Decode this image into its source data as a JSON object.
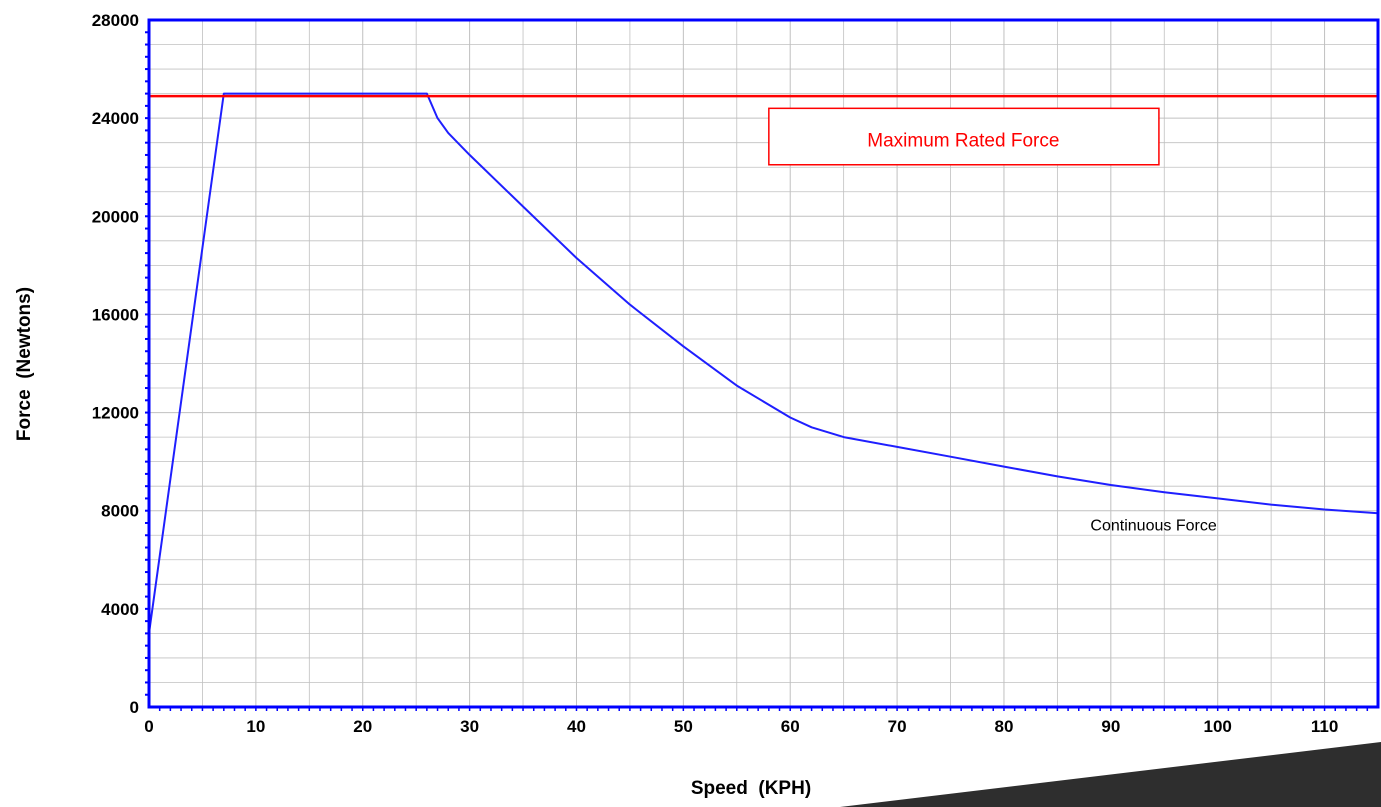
{
  "chart_data": {
    "type": "line",
    "title": "",
    "xlabel": "Speed  (KPH)",
    "ylabel": "Force  (Newtons)",
    "xlim": [
      0,
      115
    ],
    "ylim": [
      0,
      28000
    ],
    "x_ticks": [
      0,
      10,
      20,
      30,
      40,
      50,
      60,
      70,
      80,
      90,
      100,
      110
    ],
    "y_ticks": [
      0,
      4000,
      8000,
      12000,
      16000,
      20000,
      24000,
      28000
    ],
    "grid": true,
    "series": [
      {
        "name": "Continuous Force",
        "color": "#1f1fff",
        "x": [
          0,
          7,
          26,
          27,
          28,
          30,
          35,
          40,
          45,
          50,
          55,
          60,
          62,
          65,
          70,
          75,
          80,
          85,
          90,
          95,
          100,
          105,
          110,
          115
        ],
        "y": [
          3000,
          25000,
          25000,
          24000,
          23400,
          22500,
          20400,
          18300,
          16400,
          14700,
          13100,
          11800,
          11400,
          11000,
          10600,
          10200,
          9800,
          9400,
          9050,
          8750,
          8500,
          8250,
          8050,
          7900
        ]
      },
      {
        "name": "Maximum Rated Force",
        "color": "#ff0000",
        "x": [
          0,
          115
        ],
        "y": [
          24900,
          24900
        ]
      }
    ],
    "annotations": [
      {
        "text": "Maximum Rated Force",
        "color": "#ff0000",
        "boxed": true
      },
      {
        "text": "Continuous Force",
        "color": "#000000",
        "boxed": false
      }
    ],
    "colors": {
      "axis": "#0000ff",
      "grid": "#c0c0c0",
      "continuous": "#1f1fff",
      "max_rated": "#ff0000"
    }
  }
}
